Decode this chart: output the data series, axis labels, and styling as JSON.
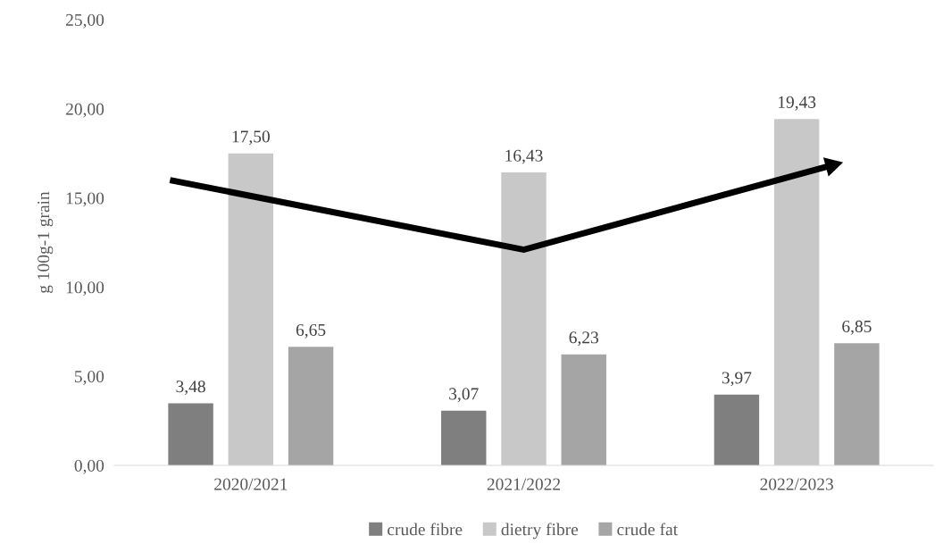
{
  "chart_data": {
    "type": "bar",
    "ylabel": "g 100g-1 grain",
    "categories": [
      "2020/2021",
      "2021/2022",
      "2022/2023"
    ],
    "series": [
      {
        "name": "crude fibre",
        "color": "#7f7f7f",
        "values": [
          3.48,
          3.07,
          3.97
        ]
      },
      {
        "name": "dietry fibre",
        "color": "#c8c8c8",
        "values": [
          17.5,
          16.43,
          19.43
        ]
      },
      {
        "name": "crude fat",
        "color": "#a5a5a5",
        "values": [
          6.65,
          6.23,
          6.85
        ]
      }
    ],
    "value_labels": [
      [
        "3,48",
        "3,07",
        "3,97"
      ],
      [
        "17,50",
        "16,43",
        "19,43"
      ],
      [
        "6,65",
        "6,23",
        "6,85"
      ]
    ],
    "ylim": [
      0,
      25
    ],
    "yticks": [
      {
        "value": 0,
        "label": "0,00"
      },
      {
        "value": 5,
        "label": "5,00"
      },
      {
        "value": 10,
        "label": "10,00"
      },
      {
        "value": 15,
        "label": "15,00"
      },
      {
        "value": 20,
        "label": "20,00"
      },
      {
        "value": 25,
        "label": "25,00"
      }
    ],
    "grid": false,
    "legend": "bottom"
  }
}
